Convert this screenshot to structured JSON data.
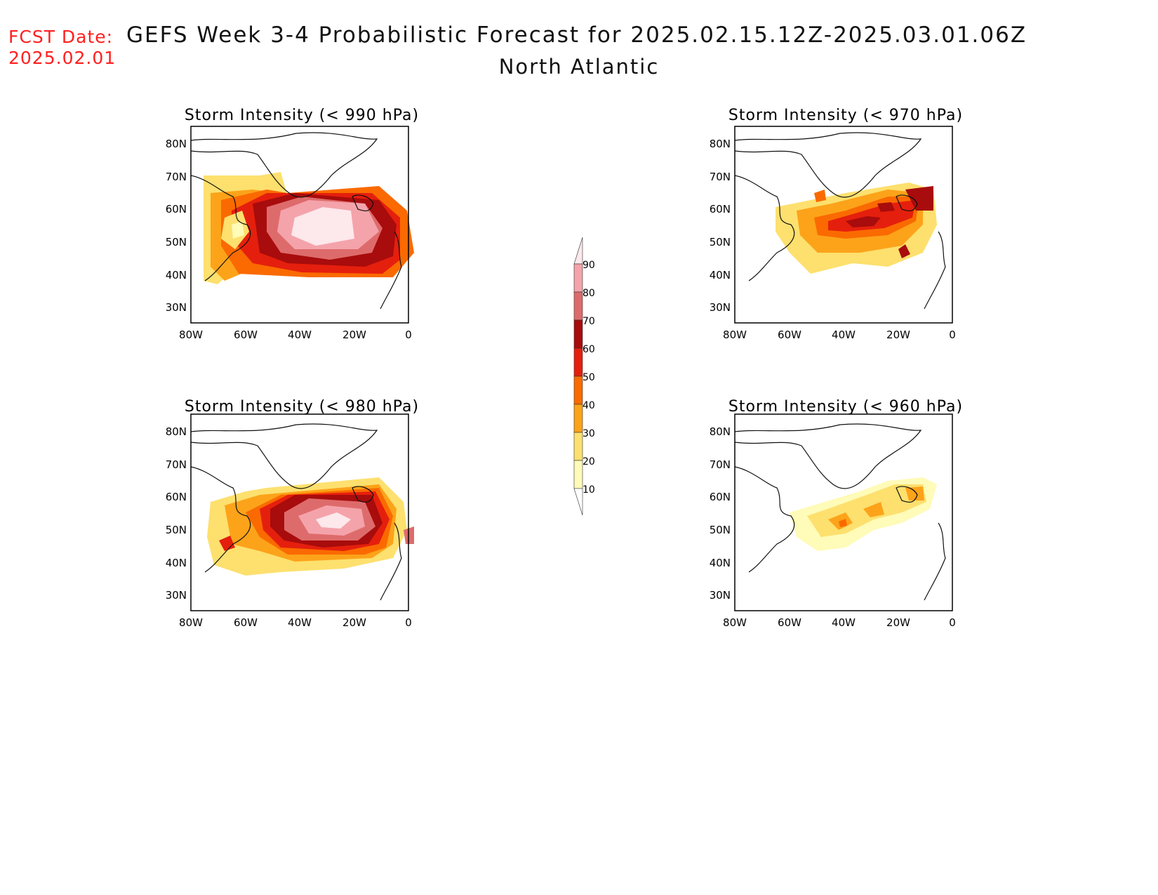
{
  "header": {
    "fcst_label": "FCST Date:",
    "fcst_date": "2025.02.01",
    "title": "GEFS Week 3-4 Probabilistic Forecast for 2025.02.15.12Z-2025.03.01.06Z",
    "subtitle": "North Atlantic"
  },
  "axes": {
    "lat_labels": [
      "80N",
      "70N",
      "60N",
      "50N",
      "40N",
      "30N"
    ],
    "lon_labels": [
      "80W",
      "60W",
      "40W",
      "20W",
      "0"
    ]
  },
  "colorbar": {
    "ticks": [
      "90",
      "80",
      "70",
      "60",
      "50",
      "40",
      "30",
      "20",
      "10"
    ],
    "colors": [
      "#fde8ec",
      "#f4a3ab",
      "#de6b6b",
      "#a80c0c",
      "#e51f0d",
      "#fa6a00",
      "#fca31a",
      "#fde06e",
      "#fffbb8"
    ]
  },
  "panels": [
    {
      "id": "p990",
      "title": "Storm Intensity (< 990 hPa)"
    },
    {
      "id": "p970",
      "title": "Storm Intensity (< 970 hPa)"
    },
    {
      "id": "p980",
      "title": "Storm Intensity (< 980 hPa)"
    },
    {
      "id": "p960",
      "title": "Storm Intensity (< 960 hPa)"
    }
  ]
}
